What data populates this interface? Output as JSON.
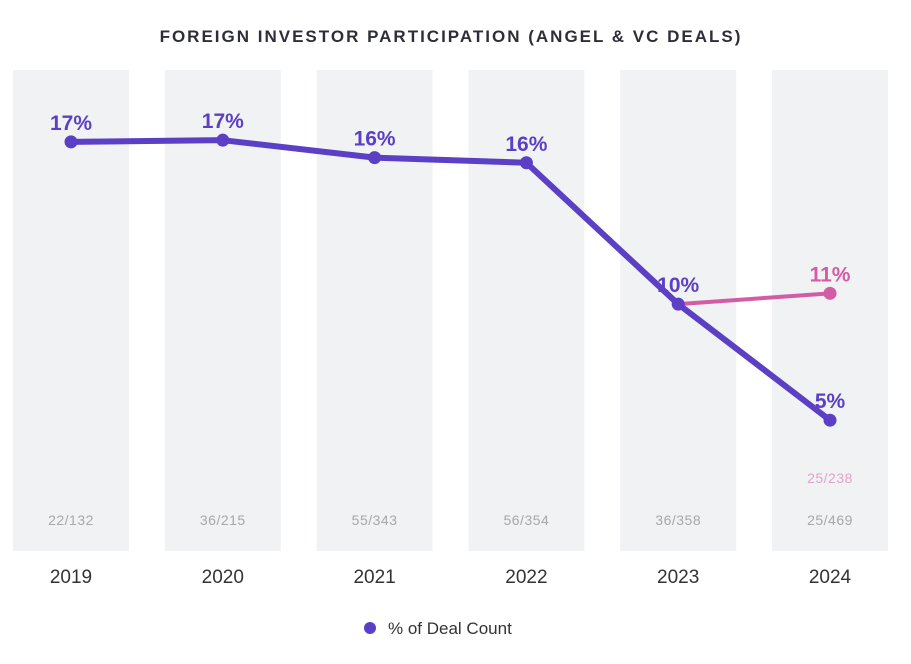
{
  "chart_data": {
    "type": "line",
    "title": "FOREIGN INVESTOR PARTICIPATION (ANGEL & VC DEALS)",
    "categories": [
      "2019",
      "2020",
      "2021",
      "2022",
      "2023",
      "2024"
    ],
    "ylim": [
      0,
      19.6
    ],
    "series": [
      {
        "name": "% of Deal Count",
        "color": "#5b3fc4",
        "values": [
          16.67,
          16.74,
          16.03,
          15.82,
          10.06,
          5.33
        ],
        "labels": [
          "17%",
          "17%",
          "16%",
          "16%",
          "10%",
          "5%"
        ],
        "counts": [
          "22/132",
          "36/215",
          "55/343",
          "56/354",
          "36/358",
          "25/469"
        ]
      },
      {
        "name": "",
        "color": "#d35ca6",
        "x": [
          "2023",
          "2024"
        ],
        "values": [
          10.06,
          10.5
        ],
        "labels": [
          "",
          "11%"
        ],
        "counts": [
          "",
          "25/238"
        ]
      }
    ],
    "legend": {
      "label": "% of Deal Count",
      "placement": "bottom-center"
    }
  }
}
